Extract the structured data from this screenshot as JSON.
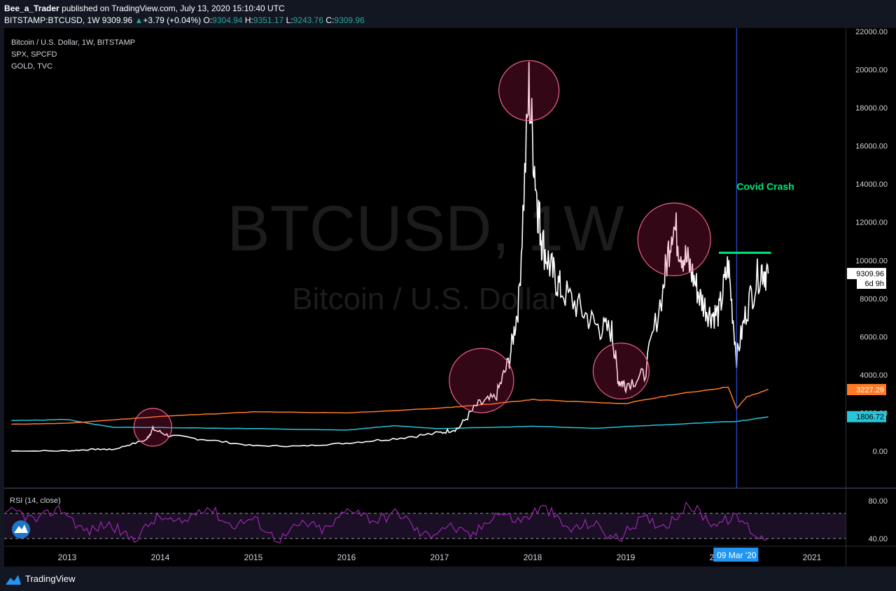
{
  "header": {
    "user": "Bee_a_Trader",
    "published": " published on TradingView.com, July 13, 2020 15:10:40 UTC",
    "symbol": "BITSTAMP:BTCUSD, 1W",
    "last": "9309.96",
    "change": "+3.79 (+0.04%)",
    "o_label": "O:",
    "o": "9304.94",
    "h_label": "H:",
    "h": "9351.17",
    "l_label": "L:",
    "l": "9243.76",
    "c_label": "C:",
    "c": "9309.96"
  },
  "legend": {
    "main": "Bitcoin / U.S. Dollar, 1W, BITSTAMP",
    "s2": "SPX, SPCFD",
    "s3": "GOLD, TVC"
  },
  "watermark": {
    "big": "BTCUSD, 1W",
    "small": "Bitcoin / U.S. Dollar"
  },
  "annotation": {
    "text": "Covid Crash",
    "color": "#00e676"
  },
  "rsi": {
    "label": "RSI (14, close)",
    "upper": 70,
    "lower": 30
  },
  "footer": {
    "brand": "TradingView"
  },
  "colors": {
    "btc": "#ffffff",
    "spx": "#ff7a24",
    "gold": "#26c6da",
    "rsi": "#9c27b0",
    "circle": "#f06292",
    "vline": "#2962ff"
  },
  "chart_data": {
    "type": "line",
    "title": "Bitcoin / U.S. Dollar, 1W, BITSTAMP",
    "x_ticks": [
      "2013",
      "2014",
      "2015",
      "2016",
      "2017",
      "2018",
      "2019",
      "2020",
      "2021"
    ],
    "y_ticks": [
      "0.00",
      "2000.00",
      "4000.00",
      "6000.00",
      "8000.00",
      "10000.00",
      "12000.00",
      "14000.00",
      "16000.00",
      "18000.00",
      "20000.00",
      "22000.00"
    ],
    "ylim": [
      0,
      22000
    ],
    "rsi_ticks": [
      "40.00",
      "80.00"
    ],
    "price_labels": [
      {
        "text": "9309.96",
        "value": 9309.96
      },
      {
        "text": "6d 9h",
        "value": 8800
      },
      {
        "text": "3227.29",
        "value": 3227.29
      },
      {
        "text": "1806.72",
        "value": 1806.72
      }
    ],
    "date_marker": "09 Mar '20",
    "series": [
      {
        "name": "BITSTAMP:BTCUSD",
        "x": [
          2012.4,
          2013.0,
          2013.3,
          2013.5,
          2013.85,
          2013.92,
          2014.1,
          2014.5,
          2015.0,
          2015.5,
          2016.0,
          2016.5,
          2017.0,
          2017.2,
          2017.4,
          2017.6,
          2017.75,
          2017.85,
          2017.96,
          2018.05,
          2018.1,
          2018.2,
          2018.3,
          2018.5,
          2018.7,
          2018.85,
          2018.92,
          2019.0,
          2019.2,
          2019.4,
          2019.5,
          2019.6,
          2019.7,
          2019.8,
          2019.9,
          2020.0,
          2020.1,
          2020.19,
          2020.3,
          2020.45,
          2020.53
        ],
        "values": [
          5,
          13,
          100,
          90,
          600,
          1150,
          800,
          600,
          280,
          260,
          420,
          650,
          950,
          1200,
          2400,
          2800,
          4800,
          7800,
          19000,
          13000,
          11000,
          9500,
          8500,
          7500,
          6500,
          6300,
          3700,
          3500,
          4000,
          8500,
          12000,
          10500,
          9500,
          8000,
          7200,
          7200,
          9800,
          4900,
          7500,
          9600,
          9310
        ]
      },
      {
        "name": "SPX, SPCFD",
        "x": [
          2012.4,
          2013.0,
          2014.0,
          2015.0,
          2016.0,
          2017.0,
          2017.5,
          2018.0,
          2018.9,
          2019.0,
          2019.5,
          2020.1,
          2020.19,
          2020.3,
          2020.53
        ],
        "values": [
          1410,
          1460,
          1820,
          2060,
          2000,
          2250,
          2450,
          2700,
          2500,
          2500,
          2950,
          3360,
          2230,
          2850,
          3230
        ]
      },
      {
        "name": "GOLD, TVC",
        "x": [
          2012.4,
          2013.0,
          2013.3,
          2013.5,
          2014.0,
          2015.0,
          2016.0,
          2016.5,
          2017.0,
          2018.0,
          2018.7,
          2019.0,
          2019.5,
          2020.0,
          2020.19,
          2020.53
        ],
        "values": [
          1600,
          1660,
          1400,
          1250,
          1240,
          1180,
          1100,
          1330,
          1180,
          1300,
          1200,
          1290,
          1400,
          1530,
          1550,
          1800
        ]
      }
    ],
    "highlight_circles": [
      {
        "x": 2013.92,
        "y": 1250
      },
      {
        "x": 2017.45,
        "y": 3700
      },
      {
        "x": 2017.96,
        "y": 18900
      },
      {
        "x": 2018.95,
        "y": 4200
      },
      {
        "x": 2019.52,
        "y": 11100
      }
    ]
  }
}
